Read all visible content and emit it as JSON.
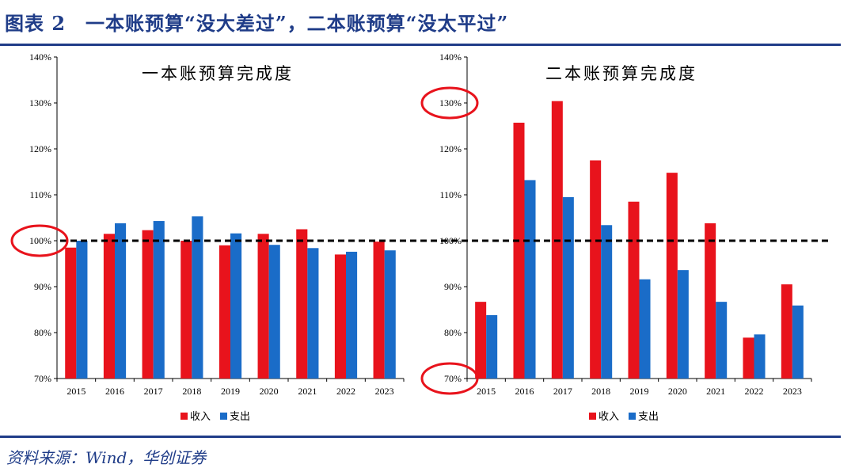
{
  "header": {
    "title": "图表 2　一本账预算“没大差过”，二本账预算“没太平过”"
  },
  "footer": {
    "source": "资料来源：Wind，华创证券"
  },
  "colors": {
    "income": "#e8131c",
    "expenditure": "#1a6cc8",
    "rule": "#1f3c88",
    "highlight_circle": "#e8131c"
  },
  "chart_data": [
    {
      "type": "bar",
      "title": "一本账预算完成度",
      "categories": [
        "2015",
        "2016",
        "2017",
        "2018",
        "2019",
        "2020",
        "2021",
        "2022",
        "2023"
      ],
      "series": [
        {
          "name": "收入",
          "values": [
            98.5,
            101.5,
            102.3,
            100.0,
            99.0,
            101.5,
            102.5,
            97.0,
            99.8
          ]
        },
        {
          "name": "支出",
          "values": [
            100.0,
            103.8,
            104.3,
            105.3,
            101.6,
            99.1,
            98.4,
            97.6,
            97.9
          ]
        }
      ],
      "ylim": [
        70,
        140
      ],
      "yticks": [
        "70%",
        "80%",
        "90%",
        "100%",
        "110%",
        "120%",
        "130%",
        "140%"
      ],
      "reference_line": 100,
      "highlighted_ticks": [
        100
      ],
      "legend_position": "bottom-center"
    },
    {
      "type": "bar",
      "title": "二本账预算完成度",
      "categories": [
        "2015",
        "2016",
        "2017",
        "2018",
        "2019",
        "2020",
        "2021",
        "2022",
        "2023"
      ],
      "series": [
        {
          "name": "收入",
          "values": [
            86.7,
            125.7,
            130.4,
            117.5,
            108.5,
            114.8,
            103.8,
            78.9,
            90.5
          ]
        },
        {
          "name": "支出",
          "values": [
            83.8,
            113.2,
            109.5,
            103.4,
            91.6,
            93.6,
            86.7,
            79.6,
            85.9
          ]
        }
      ],
      "ylim": [
        70,
        140
      ],
      "yticks": [
        "70%",
        "80%",
        "90%",
        "100%",
        "110%",
        "120%",
        "130%",
        "140%"
      ],
      "reference_line": 100,
      "highlighted_ticks": [
        130,
        70
      ],
      "legend_position": "bottom-center"
    }
  ]
}
